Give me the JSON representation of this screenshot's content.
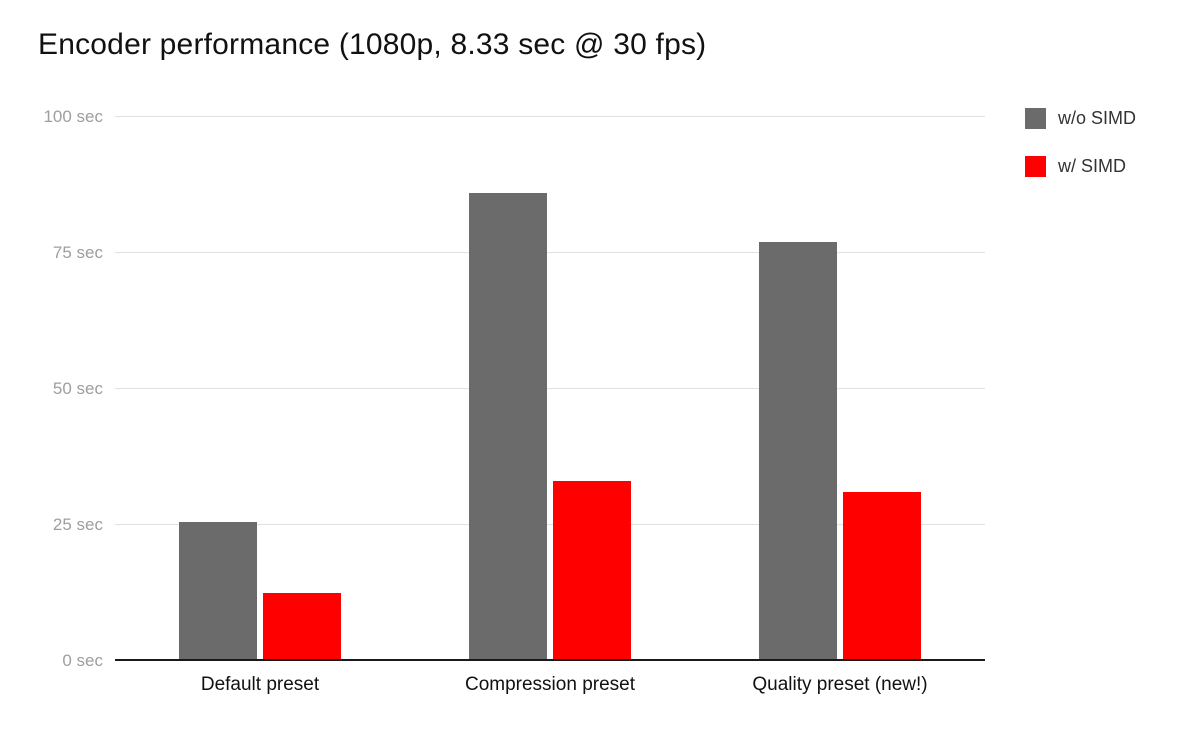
{
  "chart_data": {
    "type": "bar",
    "title": "Encoder performance (1080p, 8.33 sec @ 30 fps)",
    "categories": [
      "Default preset",
      "Compression preset",
      "Quality preset (new!)"
    ],
    "series": [
      {
        "name": "w/o SIMD",
        "color": "#6b6b6b",
        "values": [
          25.5,
          86,
          77
        ]
      },
      {
        "name": "w/ SIMD",
        "color": "#ff0000",
        "values": [
          12.5,
          33,
          31
        ]
      }
    ],
    "xlabel": "",
    "ylabel": "",
    "ylim": [
      0,
      100
    ],
    "yticks": [
      0,
      25,
      50,
      75,
      100
    ],
    "ytick_labels": [
      "0 sec",
      "25 sec",
      "50 sec",
      "75 sec",
      "100 sec"
    ],
    "grid": true,
    "legend_position": "top-right"
  },
  "colors": {
    "background": "#ffffff",
    "title_text": "#111111",
    "ytick_text": "#9e9e9e",
    "xtick_text": "#111111",
    "gridline": "#e0e0e0",
    "axis_baseline": "#1a1a1a"
  }
}
